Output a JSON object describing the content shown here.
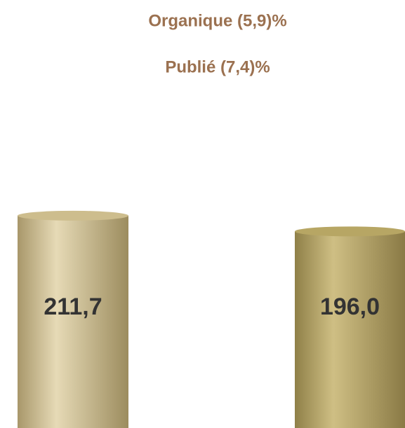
{
  "chart_data": {
    "type": "bar",
    "title": "Organique (5,9)%",
    "subtitle": "Publié (7,4)%",
    "categories": [
      null,
      null
    ],
    "values": [
      211.7,
      196.0
    ],
    "value_labels": [
      "211,7",
      "196,0"
    ],
    "colors": [
      "#cdbd8d",
      "#b7a664"
    ],
    "ylim": [
      0,
      220
    ]
  }
}
